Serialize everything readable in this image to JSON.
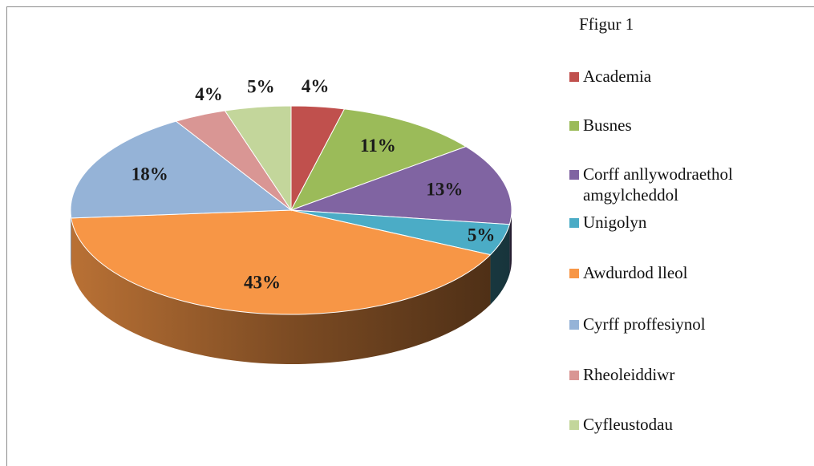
{
  "chart_data": {
    "type": "pie",
    "title": "Ffigur 1",
    "categories": [
      "Academia",
      "Busnes",
      "Corff anllywodraethol amgylcheddol",
      "Unigolyn",
      "Awdurdod lleol",
      "Cyrff proffesiynol",
      "Rheoleiddiwr",
      "Cyfleustodau"
    ],
    "values": [
      4,
      11,
      13,
      5,
      43,
      18,
      4,
      5
    ],
    "value_labels": [
      "4%",
      "11%",
      "13%",
      "5%",
      "43%",
      "18%",
      "4%",
      "5%"
    ],
    "colors": [
      "#c0504d",
      "#9bbb59",
      "#8064a2",
      "#4bacc6",
      "#f79646",
      "#95b3d7",
      "#d99694",
      "#c3d69b"
    ],
    "legend": "right"
  }
}
